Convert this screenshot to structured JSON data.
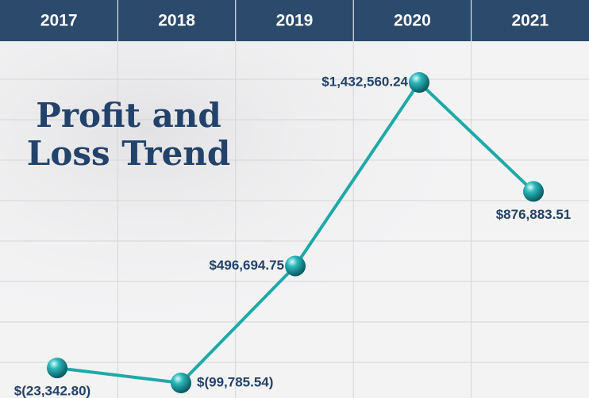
{
  "chart_data": {
    "type": "line",
    "title": "Profit and Loss Trend",
    "categories": [
      "2017",
      "2018",
      "2019",
      "2020",
      "2021"
    ],
    "values": [
      -23342.8,
      -99785.54,
      496694.75,
      1432560.24,
      876883.51
    ],
    "value_labels": [
      "$(23,342.80)",
      "$(99,785.54)",
      "$496,694.75",
      "$1,432,560.24",
      "$876,883.51"
    ],
    "color": "#1fa9a8"
  }
}
